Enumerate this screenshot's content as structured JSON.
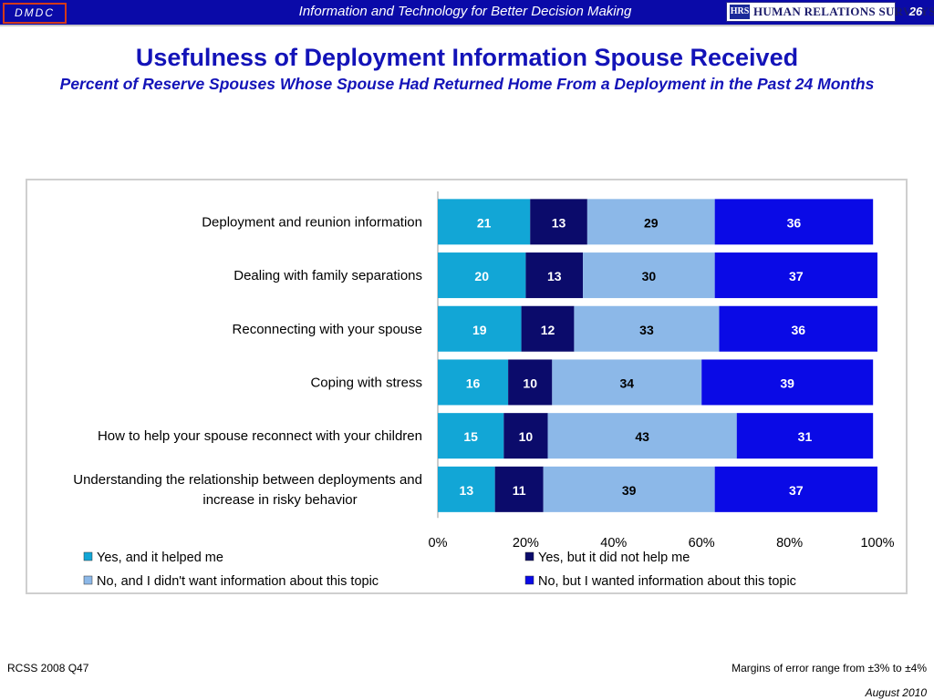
{
  "header": {
    "badge": "DMDC",
    "tagline": "Information and Technology for Better Decision Making",
    "logo_mark": "HRS",
    "logo_text": "HUMAN RELATIONS SURVEYS",
    "page_number": "26",
    "bar_color": "#0a0aa8"
  },
  "slide": {
    "title": "Usefulness of Deployment Information Spouse Received",
    "subtitle": "Percent of Reserve Spouses Whose Spouse Had Returned Home From a Deployment in the Past 24 Months"
  },
  "chart_data": {
    "type": "bar",
    "orientation": "horizontal",
    "stacked": "100%",
    "categories": [
      "Deployment and reunion information",
      "Dealing with family separations",
      "Reconnecting with your spouse",
      "Coping with stress",
      "How to help your spouse reconnect with your children",
      "Understanding the relationship between deployments and increase in risky behavior"
    ],
    "series": [
      {
        "name": "Yes, and it helped me",
        "color": "#12a6d6",
        "values": [
          21,
          20,
          19,
          16,
          15,
          13
        ]
      },
      {
        "name": "Yes, but it did not help me",
        "color": "#0b0b6b",
        "values": [
          13,
          13,
          12,
          10,
          10,
          11
        ]
      },
      {
        "name": "No, and I didn't want information about this topic",
        "color": "#8cb8e8",
        "values": [
          29,
          30,
          33,
          34,
          43,
          39
        ]
      },
      {
        "name": "No, but I wanted information about this topic",
        "color": "#0a0ae6",
        "values": [
          36,
          37,
          36,
          39,
          31,
          37
        ]
      }
    ],
    "x_ticks": [
      "0%",
      "20%",
      "40%",
      "60%",
      "80%",
      "100%"
    ],
    "xlim": [
      0,
      100
    ],
    "legend_position": "bottom",
    "grid": false
  },
  "footer": {
    "source": "RCSS 2008 Q47",
    "margin_note": "Margins of error range from ±3% to ±4%",
    "date": "August 2010"
  }
}
